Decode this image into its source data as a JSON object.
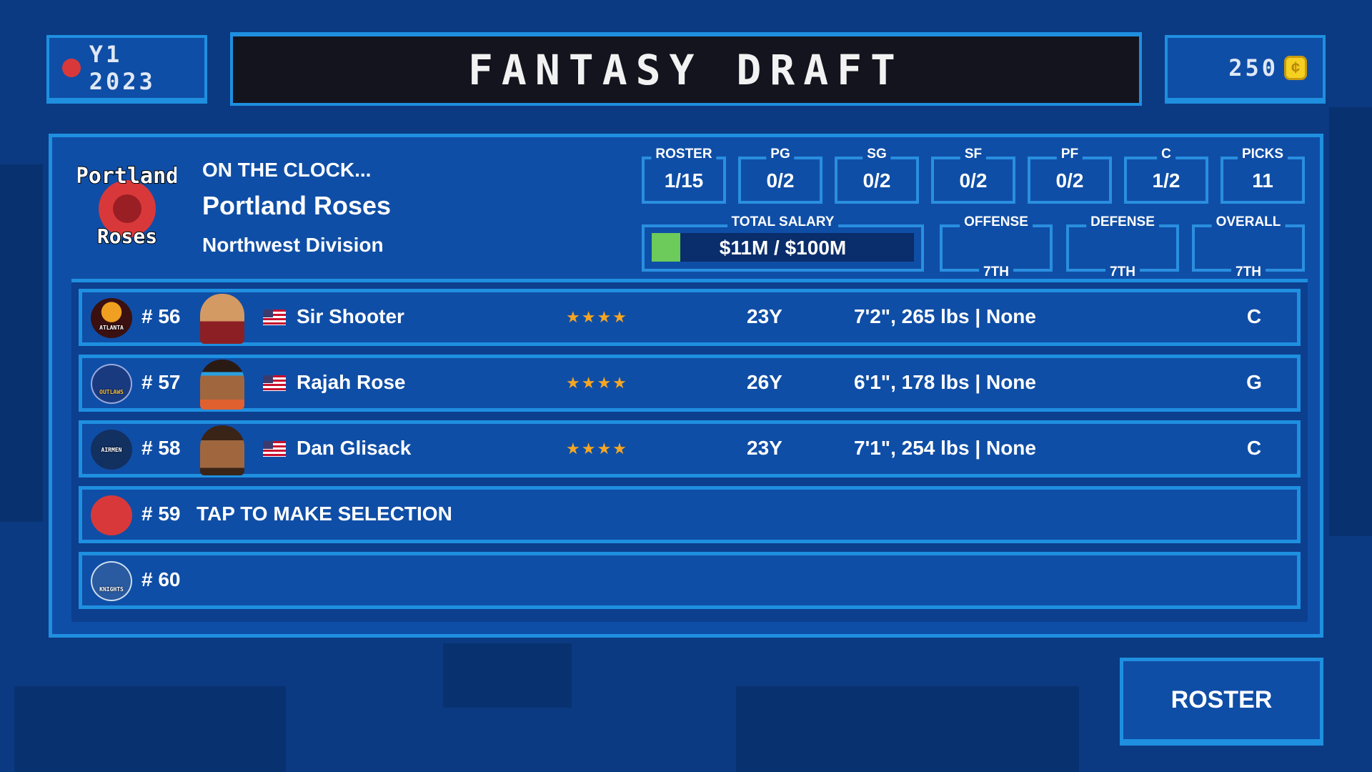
{
  "header": {
    "season": "Y1 2023",
    "title": "FANTASY DRAFT",
    "coins": "250"
  },
  "team": {
    "on_clock": "ON THE CLOCK...",
    "name": "Portland Roses",
    "division": "Northwest Division",
    "logo_text": "Portland Roses"
  },
  "stats": [
    {
      "label": "ROSTER",
      "value": "1/15"
    },
    {
      "label": "PG",
      "value": "0/2"
    },
    {
      "label": "SG",
      "value": "0/2"
    },
    {
      "label": "SF",
      "value": "0/2"
    },
    {
      "label": "PF",
      "value": "0/2"
    },
    {
      "label": "C",
      "value": "1/2"
    },
    {
      "label": "PICKS",
      "value": "11"
    }
  ],
  "salary": {
    "label": "TOTAL SALARY",
    "value": "$11M / $100M",
    "fill_percent": 11,
    "fill_color": "#6ccb5a"
  },
  "ranks": [
    {
      "label": "OFFENSE",
      "value": "7TH"
    },
    {
      "label": "DEFENSE",
      "value": "7TH"
    },
    {
      "label": "OVERALL",
      "value": "7TH"
    }
  ],
  "picks": [
    {
      "pick": "# 56",
      "team": "Atlanta",
      "name": "Sir Shooter",
      "stars": "★★★★",
      "age": "23Y",
      "desc": "7'2\", 265 lbs | None",
      "pos": "C"
    },
    {
      "pick": "# 57",
      "team": "Outlaws",
      "name": "Rajah Rose",
      "stars": "★★★★",
      "age": "26Y",
      "desc": "6'1\", 178 lbs | None",
      "pos": "G"
    },
    {
      "pick": "# 58",
      "team": "Airmen",
      "name": "Dan Glisack",
      "stars": "★★★★",
      "age": "23Y",
      "desc": "7'1\", 254 lbs | None",
      "pos": "C"
    },
    {
      "pick": "# 59",
      "team": "Portland Roses",
      "selection": "TAP TO MAKE SELECTION"
    },
    {
      "pick": "# 60",
      "team": "Knights"
    }
  ],
  "buttons": {
    "roster": "ROSTER"
  }
}
